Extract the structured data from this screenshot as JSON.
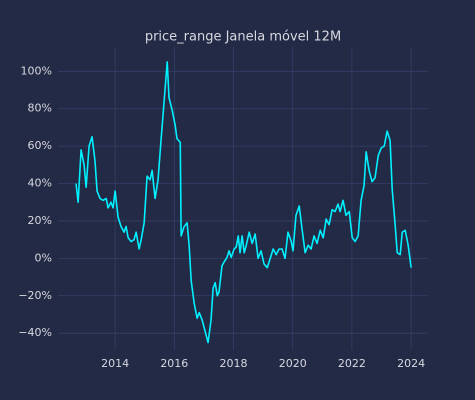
{
  "chart_data": {
    "type": "line",
    "title": "price_range Janela móvel 12M",
    "x": [
      2012.68,
      2012.75,
      2012.85,
      2012.95,
      2013.02,
      2013.12,
      2013.22,
      2013.32,
      2013.39,
      2013.49,
      2013.59,
      2013.7,
      2013.76,
      2013.86,
      2013.93,
      2014.0,
      2014.1,
      2014.2,
      2014.3,
      2014.37,
      2014.44,
      2014.54,
      2014.64,
      2014.71,
      2014.81,
      2014.88,
      2014.98,
      2015.08,
      2015.18,
      2015.25,
      2015.35,
      2015.45,
      2015.55,
      2015.66,
      2015.76,
      2015.82,
      2015.93,
      2016.03,
      2016.09,
      2016.2,
      2016.23,
      2016.33,
      2016.43,
      2016.5,
      2016.57,
      2016.67,
      2016.77,
      2016.84,
      2016.94,
      2017.04,
      2017.14,
      2017.24,
      2017.31,
      2017.38,
      2017.45,
      2017.51,
      2017.61,
      2017.68,
      2017.78,
      2017.85,
      2017.92,
      2018.02,
      2018.09,
      2018.16,
      2018.22,
      2018.29,
      2018.36,
      2018.43,
      2018.53,
      2018.63,
      2018.73,
      2018.83,
      2018.93,
      2019.03,
      2019.14,
      2019.24,
      2019.34,
      2019.44,
      2019.54,
      2019.64,
      2019.74,
      2019.84,
      2019.95,
      2020.01,
      2020.11,
      2020.22,
      2020.32,
      2020.42,
      2020.52,
      2020.62,
      2020.72,
      2020.82,
      2020.93,
      2021.03,
      2021.13,
      2021.23,
      2021.33,
      2021.43,
      2021.53,
      2021.6,
      2021.7,
      2021.8,
      2021.91,
      2022.01,
      2022.11,
      2022.21,
      2022.31,
      2022.41,
      2022.48,
      2022.58,
      2022.68,
      2022.78,
      2022.89,
      2022.99,
      2023.09,
      2023.19,
      2023.29,
      2023.36,
      2023.46,
      2023.53,
      2023.63,
      2023.7,
      2023.8,
      2023.9,
      2024.0
    ],
    "series": [
      {
        "color": "#00f0ff",
        "values": [
          40,
          30,
          58,
          50,
          38,
          60,
          65,
          52,
          36,
          32,
          31,
          32,
          27,
          30,
          27,
          36,
          22,
          17,
          14,
          17,
          11,
          9,
          10,
          14,
          5,
          10,
          19,
          44,
          42,
          47,
          32,
          42,
          63,
          85,
          105,
          86,
          79,
          71,
          64,
          62,
          12,
          17,
          19,
          7,
          -12,
          -24,
          -32,
          -29,
          -33,
          -39,
          -45,
          -33,
          -16,
          -13,
          -20,
          -18,
          -4,
          -2,
          0.5,
          4,
          0.5,
          5,
          6,
          12,
          3,
          12,
          3,
          7,
          14,
          8,
          13,
          0,
          4,
          -3,
          -5,
          0,
          5,
          2,
          5,
          5,
          0,
          14,
          9,
          4,
          23,
          28,
          15,
          3,
          7,
          5,
          12,
          8,
          15,
          11,
          21,
          18,
          26,
          25,
          29,
          25,
          31,
          23,
          25,
          11,
          9,
          12,
          31,
          39,
          57,
          47,
          41,
          43,
          55,
          59,
          60,
          68,
          63,
          37,
          18,
          3,
          2,
          14,
          15,
          7,
          -5
        ]
      }
    ],
    "xlim": [
      2012.07,
      2024.57
    ],
    "xticks": [
      2014,
      2016,
      2018,
      2020,
      2022,
      2024
    ],
    "ylim": [
      -49,
      113
    ],
    "yticks": [
      {
        "value": -40,
        "label": "−40%"
      },
      {
        "value": -20,
        "label": "−20%"
      },
      {
        "value": 0,
        "label": "0%"
      },
      {
        "value": 20,
        "label": "20%"
      },
      {
        "value": 40,
        "label": "40%"
      },
      {
        "value": 60,
        "label": "60%"
      },
      {
        "value": 80,
        "label": "80%"
      },
      {
        "value": 100,
        "label": "100%"
      }
    ],
    "grid": true
  }
}
